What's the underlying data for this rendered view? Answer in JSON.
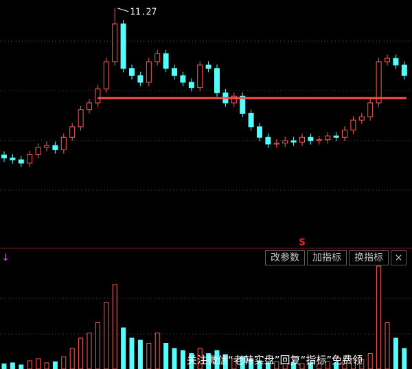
{
  "chart_data": [
    {
      "type": "candlestick",
      "open": [
        8.2,
        8.14,
        8.1,
        8.03,
        8.21,
        8.36,
        8.4,
        8.31,
        8.57,
        8.79,
        9.15,
        9.29,
        9.58,
        10.15,
        10.94,
        10.01,
        9.86,
        9.72,
        10.15,
        10.32,
        10.01,
        9.86,
        9.72,
        9.61,
        10.08,
        10.01,
        9.5,
        9.29,
        9.43,
        9.07,
        8.79,
        8.57,
        8.43,
        8.45,
        8.5,
        8.47,
        8.57,
        8.5,
        8.52,
        8.6,
        8.57,
        8.72,
        8.93,
        9.0,
        9.29,
        10.15,
        10.22,
        10.08
      ],
      "close": [
        8.14,
        8.1,
        8.03,
        8.21,
        8.36,
        8.4,
        8.31,
        8.57,
        8.79,
        9.15,
        9.29,
        9.58,
        10.15,
        10.94,
        10.01,
        9.86,
        9.72,
        10.15,
        10.32,
        10.01,
        9.86,
        9.72,
        9.61,
        10.08,
        10.01,
        9.5,
        9.29,
        9.43,
        9.07,
        8.79,
        8.57,
        8.43,
        8.45,
        8.5,
        8.47,
        8.57,
        8.5,
        8.52,
        8.6,
        8.57,
        8.72,
        8.93,
        9.0,
        9.29,
        10.15,
        10.22,
        10.08,
        9.86
      ],
      "high": [
        8.28,
        8.22,
        8.18,
        8.29,
        8.44,
        8.48,
        8.48,
        8.65,
        8.87,
        9.23,
        9.37,
        9.66,
        10.23,
        11.27,
        11.02,
        10.09,
        9.94,
        10.23,
        10.4,
        10.4,
        10.09,
        9.94,
        9.8,
        10.16,
        10.16,
        10.09,
        9.58,
        9.51,
        9.51,
        9.15,
        8.87,
        8.65,
        8.53,
        8.58,
        8.58,
        8.65,
        8.65,
        8.6,
        8.68,
        8.68,
        8.8,
        9.01,
        9.08,
        9.37,
        10.23,
        10.3,
        10.3,
        10.16
      ],
      "low": [
        8.06,
        8.02,
        7.95,
        7.95,
        8.13,
        8.28,
        8.23,
        8.23,
        8.49,
        8.71,
        9.07,
        9.21,
        9.5,
        10.07,
        9.93,
        9.78,
        9.64,
        9.64,
        10.07,
        9.93,
        9.78,
        9.64,
        9.53,
        9.53,
        9.93,
        9.42,
        9.21,
        9.21,
        8.99,
        8.71,
        8.49,
        8.35,
        8.35,
        8.37,
        8.39,
        8.39,
        8.42,
        8.42,
        8.44,
        8.49,
        8.49,
        8.64,
        8.85,
        8.92,
        9.21,
        10.07,
        10.0,
        9.78
      ],
      "ylim": [
        6.28,
        11.44
      ],
      "up_color": "#ff5a5a",
      "down_color": "#54fcfc",
      "level": 9.39,
      "level_color": "#ff5050",
      "high_label": "11.27",
      "signal": "S",
      "signal_index": 35,
      "signal_color": "#ff2020"
    },
    {
      "type": "bar",
      "values": [
        5,
        6,
        4,
        8,
        10,
        6,
        7,
        12,
        20,
        30,
        35,
        45,
        65,
        82,
        40,
        30,
        28,
        25,
        35,
        25,
        20,
        18,
        15,
        20,
        15,
        18,
        14,
        10,
        12,
        10,
        8,
        6,
        7,
        5,
        6,
        5,
        6,
        5,
        7,
        6,
        8,
        10,
        9,
        15,
        100,
        45,
        30,
        20
      ],
      "ylim": [
        0,
        100
      ]
    }
  ],
  "toolbar": [
    "改参数",
    "加指标",
    "换指标",
    "×"
  ],
  "watermark": "关注微信“老韩实盘”回复“指标”免费领"
}
